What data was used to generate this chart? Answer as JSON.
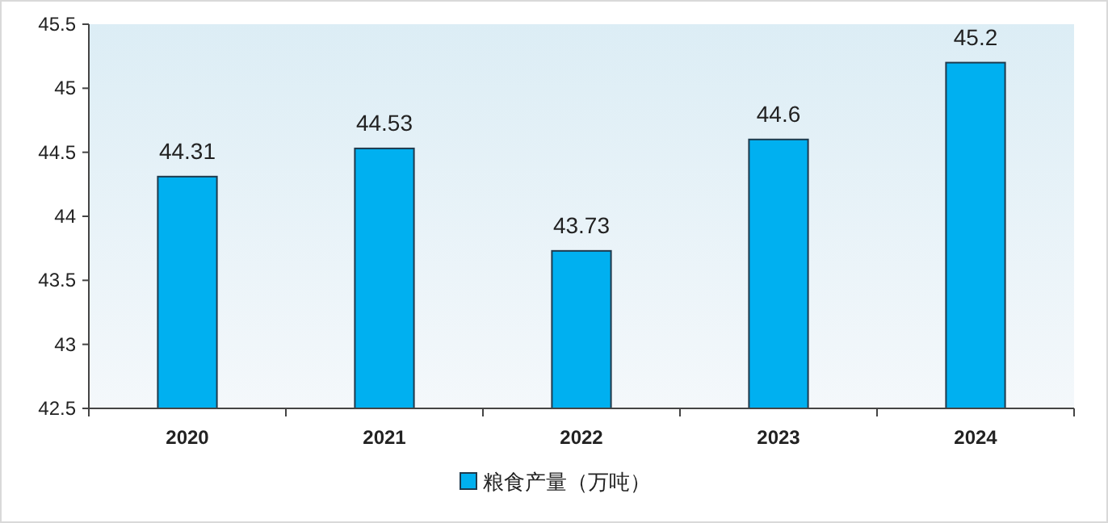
{
  "chart_data": {
    "type": "bar",
    "categories": [
      "2020",
      "2021",
      "2022",
      "2023",
      "2024"
    ],
    "series": [
      {
        "name": "粮食产量（万吨）",
        "color": "#00b0f0",
        "values": [
          44.31,
          44.53,
          43.73,
          44.6,
          45.2
        ]
      }
    ],
    "ylim": [
      42.5,
      45.5
    ],
    "yticks": [
      42.5,
      43,
      43.5,
      44,
      44.5,
      45,
      45.5
    ],
    "data_labels": true,
    "legend": "bottom",
    "grid": false
  }
}
